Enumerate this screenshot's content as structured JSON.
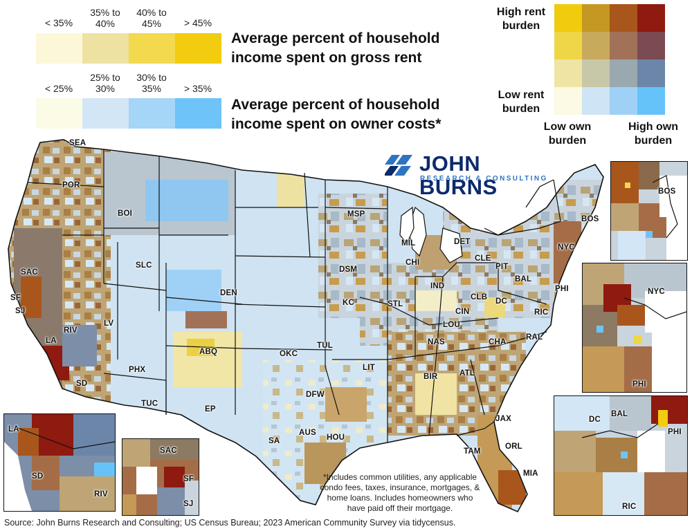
{
  "legend_rent": {
    "labels": [
      "< 35%",
      "35% to\n40%",
      "40% to\n45%",
      "> 45%"
    ],
    "colors": [
      "#fcf7d8",
      "#ede2a2",
      "#f2d94e",
      "#f2cc0e"
    ],
    "title_line1": "Average percent of household",
    "title_line2": "income spent on gross rent"
  },
  "legend_own": {
    "labels": [
      "< 25%",
      "25% to\n30%",
      "30% to\n35%",
      "> 35%"
    ],
    "colors": [
      "#fbfbe6",
      "#d3e6f5",
      "#a5d5f7",
      "#6ec4f8"
    ],
    "title_line1": "Average percent of household",
    "title_line2": "income spent on owner costs*"
  },
  "bivariate": {
    "high_rent": "High rent\nburden",
    "low_rent": "Low rent\nburden",
    "low_own": "Low own\nburden",
    "high_own": "High own\nburden",
    "grid": [
      [
        "#f1cb0e",
        "#c49822",
        "#a9561c",
        "#8e1a10"
      ],
      [
        "#efd647",
        "#c8aa5c",
        "#a27258",
        "#7c4a52"
      ],
      [
        "#efe4a4",
        "#c7c8a7",
        "#9aa8b0",
        "#6b86a8"
      ],
      [
        "#fcf9e4",
        "#cfe4f4",
        "#9fd1f6",
        "#66c3fa"
      ]
    ]
  },
  "brand": {
    "name": "JOHN BURNS",
    "sub": "RESEARCH & CONSULTING",
    "color": "#0d2a6b",
    "accent": "#2f74c0"
  },
  "metros": {
    "SEA": "SEA",
    "POR": "POR",
    "BOI": "BOI",
    "SAC": "SAC",
    "SF": "SF",
    "SJ": "SJ",
    "LA": "LA",
    "RIV": "RIV",
    "SD": "SD",
    "LV": "LV",
    "SLC": "SLC",
    "PHX": "PHX",
    "TUC": "TUC",
    "DEN": "DEN",
    "ABQ": "ABQ",
    "EP": "EP",
    "MSP": "MSP",
    "DSM": "DSM",
    "KC": "KC",
    "OKC": "OKC",
    "TUL": "TUL",
    "DFW": "DFW",
    "AUS": "AUS",
    "SA": "SA",
    "HOU": "HOU",
    "LIT": "LIT",
    "STL": "STL",
    "MIL": "MIL",
    "CHI": "CHI",
    "DET": "DET",
    "IND": "IND",
    "CLE": "CLE",
    "PIT": "PIT",
    "CLB": "CLB",
    "CIN": "CIN",
    "LOU": "LOU",
    "NAS": "NAS",
    "CHA": "CHA",
    "RAL": "RAL",
    "RIC": "RIC",
    "DC": "DC",
    "BAL": "BAL",
    "PHI": "PHI",
    "NYC": "NYC",
    "BOS": "BOS",
    "BIR": "BIR",
    "ATL": "ATL",
    "JAX": "JAX",
    "ORL": "ORL",
    "TAM": "TAM",
    "MIA": "MIA"
  },
  "insets": {
    "bos": {
      "BOS": "BOS"
    },
    "nyc": {
      "NYC": "NYC",
      "PHI": "PHI"
    },
    "dc": {
      "DC": "DC",
      "BAL": "BAL",
      "PHI": "PHI",
      "RIC": "RIC"
    },
    "la": {
      "LA": "LA",
      "SD": "SD",
      "RIV": "RIV"
    },
    "sf": {
      "SAC": "SAC",
      "SF": "SF",
      "SJ": "SJ"
    }
  },
  "footnote": "*Includes common utilities, any applicable\ncondo fees, taxes, insurance, mortgages, &\nhome loans. Includes homeowners who\nhave paid off their mortgage.",
  "source": "Source: John Burns Research and Consulting; US Census Bureau; 2023 American Community Survey via tidycensus."
}
